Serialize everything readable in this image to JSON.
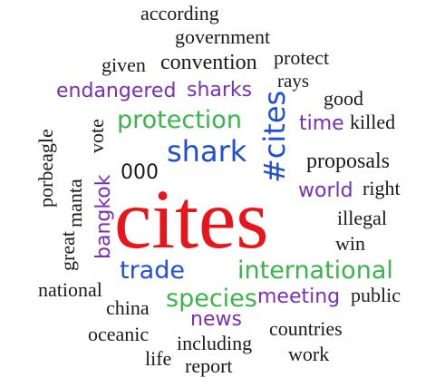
{
  "colors": {
    "black": "#1a1a1a",
    "purple": "#7a2fb8",
    "green": "#39b54a",
    "blue": "#1f4fd6",
    "red": "#e8151b"
  },
  "words": {
    "according": "according",
    "government": "government",
    "given": "given",
    "convention": "convention",
    "protect": "protect",
    "endangered": "endangered",
    "sharks": "sharks",
    "rays": "rays",
    "good": "good",
    "porbeagle": "porbeagle",
    "vote": "vote",
    "protection": "protection",
    "cites_hashtag": "#cites",
    "time": "time",
    "killed": "killed",
    "manta": "manta",
    "shark": "shark",
    "proposals": "proposals",
    "bangkok": "bangkok",
    "number_000": "000",
    "world": "world",
    "right": "right",
    "cites": "cites",
    "great": "great",
    "illegal": "illegal",
    "win": "win",
    "trade": "trade",
    "international": "international",
    "national": "national",
    "china": "china",
    "species": "species",
    "meeting": "meeting",
    "public": "public",
    "news": "news",
    "oceanic": "oceanic",
    "countries": "countries",
    "life": "life",
    "including": "including",
    "work": "work",
    "report": "report"
  }
}
